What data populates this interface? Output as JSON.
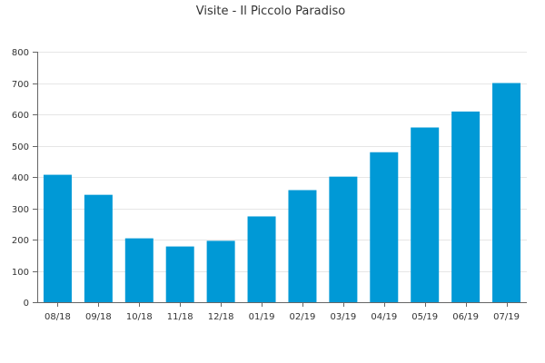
{
  "chart_data": {
    "type": "bar",
    "title": "Visite - Il Piccolo Paradiso",
    "xlabel": "",
    "ylabel": "",
    "categories": [
      "08/18",
      "09/18",
      "10/18",
      "11/18",
      "12/18",
      "01/19",
      "02/19",
      "03/19",
      "04/19",
      "05/19",
      "06/19",
      "07/19"
    ],
    "values": [
      407,
      343,
      204,
      178,
      196,
      274,
      358,
      401,
      479,
      558,
      609,
      700
    ],
    "ylim": [
      0,
      800
    ],
    "yticks": [
      0,
      100,
      200,
      300,
      400,
      500,
      600,
      700,
      800
    ],
    "grid": true,
    "legend": "none",
    "bar_color": "#0099d6"
  }
}
